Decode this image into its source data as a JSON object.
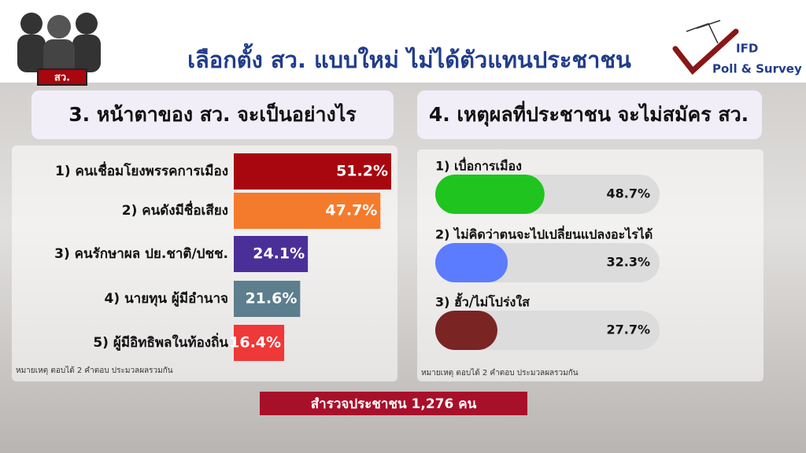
{
  "title": "เลือกตั้ง สว. แบบใหม่ ไม่ได้ตัวแทนประชาชน",
  "badge": "สว.",
  "logo": {
    "line1": "IFD",
    "line2": "Poll & Survey"
  },
  "footer": "สำรวจประชาชน 1,276 คน",
  "chart_data": [
    {
      "type": "bar",
      "title": "3. หน้าตาของ สว. จะเป็นอย่างไร",
      "categories": [
        "1) คนเชื่อมโยงพรรคการเมือง",
        "2) คนดังมีชื่อเสียง",
        "3) คนรักษาผล ปย.ชาติ/ปชช.",
        "4) นายทุน ผู้มีอำนาจ",
        "5) ผู้มีอิทธิพลในท้องถิ่น"
      ],
      "values": [
        51.2,
        47.7,
        24.1,
        21.6,
        16.4
      ],
      "value_labels": [
        "51.2%",
        "47.7%",
        "24.1%",
        "21.6%",
        "16.4%"
      ],
      "colors": [
        "#a8070f",
        "#f57b2c",
        "#4b2f98",
        "#5c7e8d",
        "#ef3838"
      ],
      "note": "หมายเหตุ ตอบได้ 2 คำตอบ ประมวลผลรวมกัน"
    },
    {
      "type": "progress",
      "title": "4. เหตุผลที่ประชาชน จะไม่สมัคร สว.",
      "categories": [
        "1) เบื่อการเมือง",
        "2) ไม่คิดว่าตนจะไปเปลี่ยนแปลงอะไรได้",
        "3) ฮั้ว/ไม่โปร่งใส"
      ],
      "values": [
        48.7,
        32.3,
        27.7
      ],
      "value_labels": [
        "48.7%",
        "32.3%",
        "27.7%"
      ],
      "colors": [
        "#1fc41f",
        "#5b7cff",
        "#7a2424"
      ],
      "xlim": [
        0,
        100
      ],
      "note": "หมายเหตุ ตอบได้ 2 คำตอบ ประมวลผลรวมกัน"
    }
  ]
}
